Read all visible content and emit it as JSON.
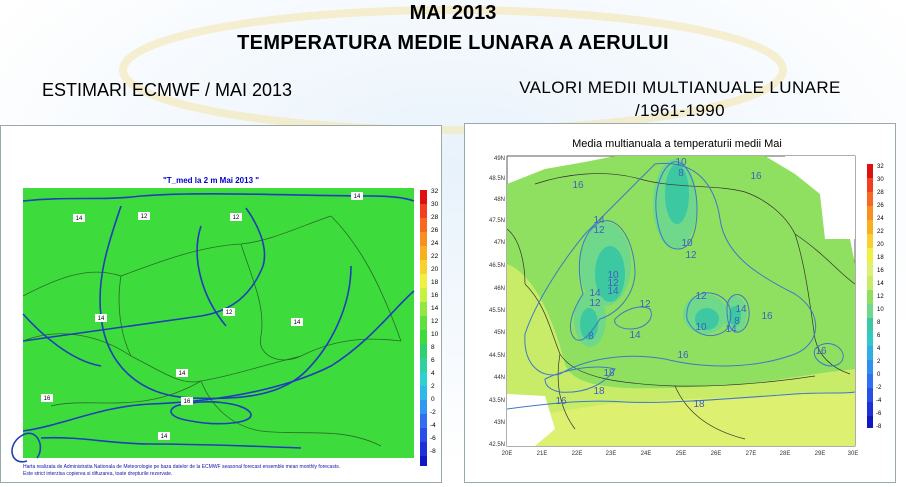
{
  "header": {
    "title_line1": "MAI 2013",
    "title_line2": "TEMPERATURA MEDIE LUNARA A AERULUI"
  },
  "left_section": {
    "caption": "ESTIMARI ECMWF / MAI 2013",
    "map_title": "\"T_med la 2 m Mai 2013 \"",
    "footer_line1": "Harta realizata de Administratia Nationala de Meteorologie pe baza datelor de la ECMWF seasonal forecast ensemble mean monthly forecasts.",
    "footer_line2": "Este strict interzisa copierea si difuzarea, toate drepturile rezervate.",
    "colorbar_ticks": [
      "32",
      "30",
      "28",
      "26",
      "24",
      "22",
      "20",
      "18",
      "16",
      "14",
      "12",
      "10",
      "8",
      "6",
      "4",
      "2",
      "0",
      "-2",
      "-4",
      "-6",
      "-8"
    ],
    "isoline_labels": [
      "14",
      "12",
      "12",
      "14",
      "12",
      "14",
      "14",
      "14",
      "16",
      "16",
      "14"
    ]
  },
  "right_section": {
    "caption_line1": "VALORI MEDII MULTIANUALE LUNARE",
    "caption_line2": "/1961-1990",
    "map_title": "Media multianuala a temperaturii medii Mai",
    "lat_labels": [
      "49N",
      "48.5N",
      "48N",
      "47.5N",
      "47N",
      "46.5N",
      "46N",
      "45.5N",
      "45N",
      "44.5N",
      "44N",
      "43.5N",
      "43N",
      "42.5N"
    ],
    "lon_labels": [
      "20E",
      "21E",
      "22E",
      "23E",
      "24E",
      "25E",
      "26E",
      "27E",
      "28E",
      "29E",
      "30E"
    ],
    "colorbar_ticks": [
      "32",
      "30",
      "28",
      "26",
      "24",
      "22",
      "20",
      "18",
      "16",
      "14",
      "12",
      "10",
      "8",
      "6",
      "4",
      "2",
      "0",
      "-2",
      "-4",
      "-6",
      "-8"
    ],
    "isoline_labels": [
      "10",
      "8",
      "16",
      "16",
      "14",
      "12",
      "10",
      "12",
      "10",
      "12",
      "14",
      "14",
      "12",
      "8",
      "12",
      "14",
      "12",
      "10",
      "16",
      "14",
      "8",
      "14",
      "16",
      "16",
      "18",
      "18",
      "16",
      "18"
    ]
  },
  "colors": {
    "left_green": "#3ddc3c",
    "left_isoline": "#1f3fb8",
    "right_green": "#8fe060",
    "right_yellow": "#ddf070",
    "right_teal": "#3cc8a0",
    "right_isoline": "#3f78c8"
  }
}
